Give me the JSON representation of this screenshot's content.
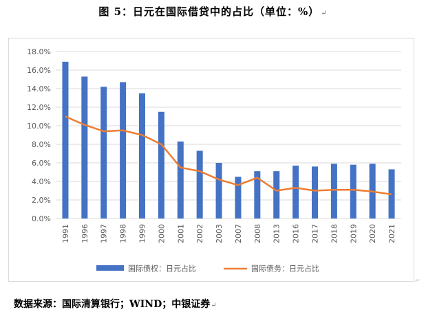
{
  "title": "图 5：日元在国际借贷中的占比（单位：%）",
  "source": "数据来源：国际清算银行；WIND；中银证券",
  "return_mark": "↵",
  "colors": {
    "bar": "#4472C4",
    "line": "#ED7D31",
    "grid": "#d9d9d9",
    "axis_text": "#595959"
  },
  "chart_data": {
    "type": "bar",
    "categories": [
      "1991",
      "1996",
      "1997",
      "1998",
      "1999",
      "2000",
      "2001",
      "2002",
      "2003",
      "2007",
      "2008",
      "2013",
      "2016",
      "2017",
      "2018",
      "2019",
      "2020",
      "2021"
    ],
    "series": [
      {
        "name": "国际债权：日元占比",
        "type": "bar",
        "values": [
          16.9,
          15.3,
          14.2,
          14.7,
          13.5,
          11.5,
          8.3,
          7.3,
          6.0,
          4.5,
          5.1,
          5.1,
          5.7,
          5.6,
          5.9,
          5.8,
          5.9,
          5.3
        ]
      },
      {
        "name": "国际债务：日元占比",
        "type": "line",
        "values": [
          11.0,
          10.1,
          9.4,
          9.5,
          9.0,
          8.0,
          5.5,
          5.1,
          4.2,
          3.6,
          4.4,
          3.0,
          3.3,
          3.0,
          3.1,
          3.1,
          2.9,
          2.6
        ]
      }
    ],
    "y_ticks": [
      "0.0%",
      "2.0%",
      "4.0%",
      "6.0%",
      "8.0%",
      "10.0%",
      "12.0%",
      "14.0%",
      "16.0%",
      "18.0%"
    ],
    "ylim": [
      0,
      18
    ],
    "grid": true,
    "legend_position": "bottom"
  }
}
